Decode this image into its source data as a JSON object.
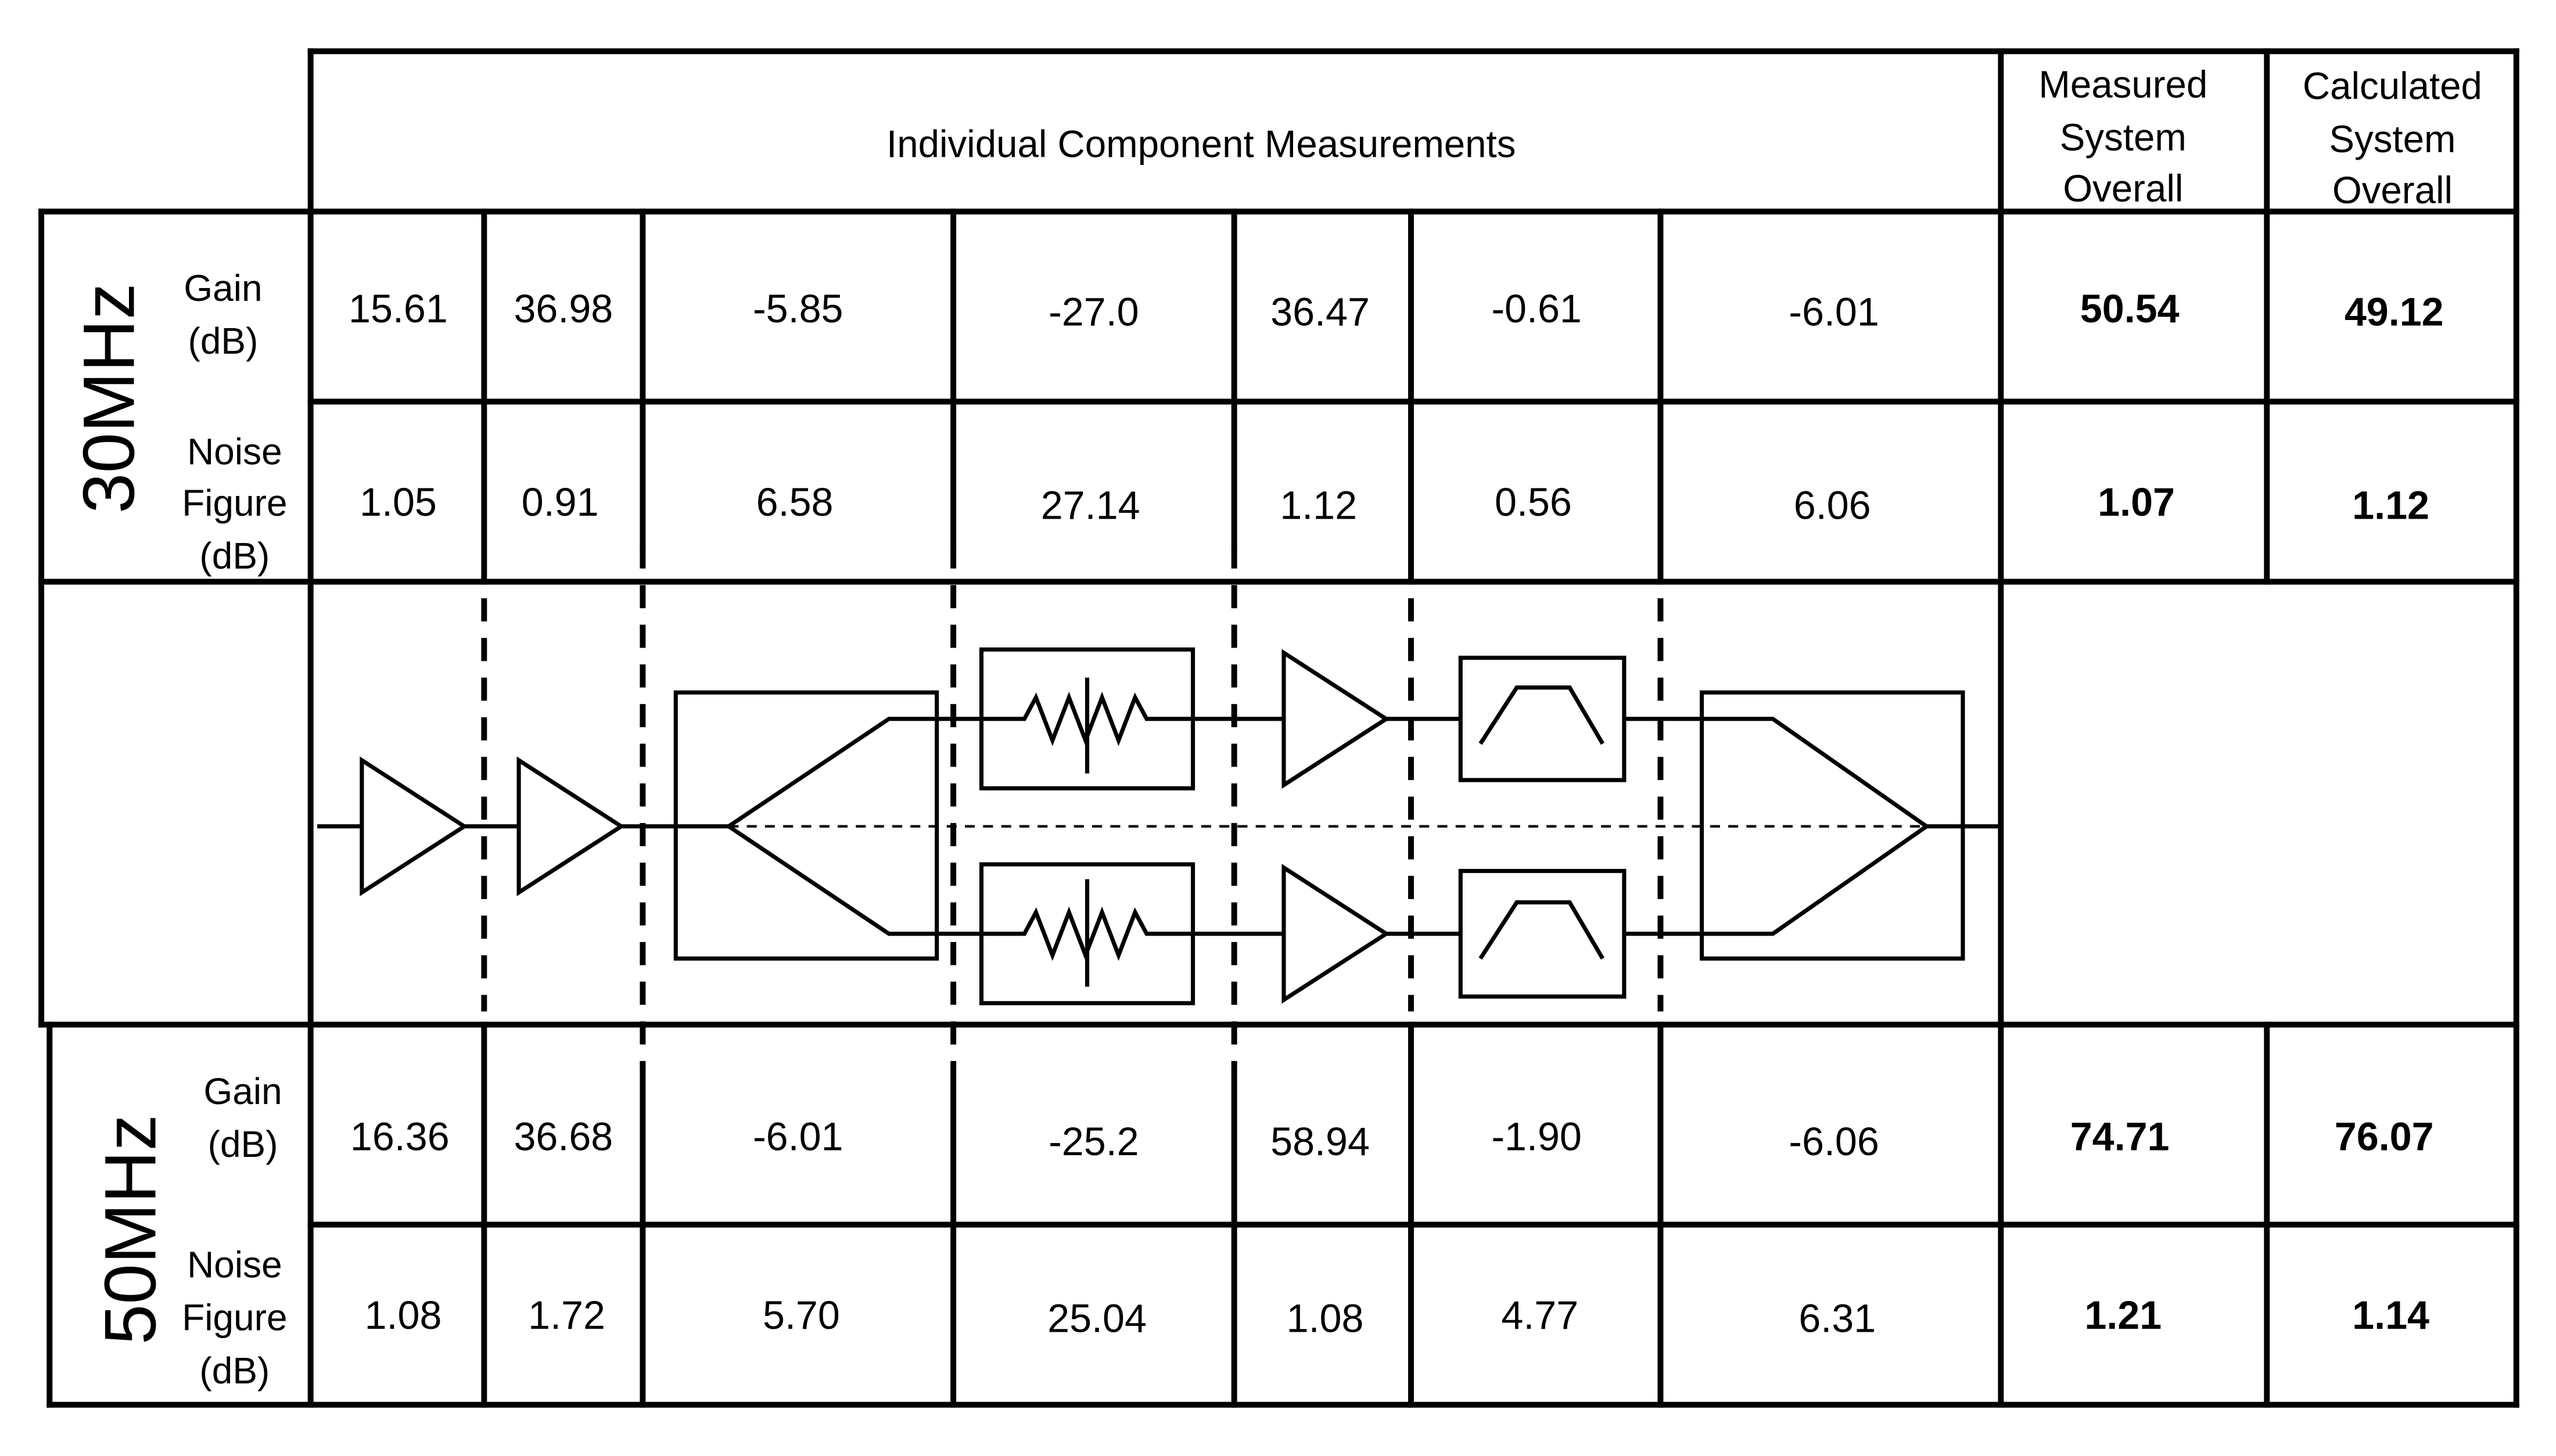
{
  "header": {
    "individual": "Individual Component Measurements",
    "measured": [
      "Measured",
      "System",
      "Overall"
    ],
    "calculated": [
      "Calculated",
      "System",
      "Overall"
    ]
  },
  "sections": [
    {
      "frequency": "30MHz",
      "rows": [
        {
          "label": [
            "Gain",
            "(dB)"
          ],
          "components": [
            "15.61",
            "36.98",
            "-5.85",
            "-27.0",
            "36.47",
            "-0.61",
            "-6.01"
          ],
          "measured": "50.54",
          "calculated": "49.12"
        },
        {
          "label": [
            "Noise",
            "Figure",
            "(dB)"
          ],
          "components": [
            "1.05",
            "0.91",
            "6.58",
            "27.14",
            "1.12",
            "0.56",
            "6.06"
          ],
          "measured": "1.07",
          "calculated": "1.12"
        }
      ]
    },
    {
      "frequency": "50MHz",
      "rows": [
        {
          "label": [
            "Gain",
            "(dB)"
          ],
          "components": [
            "16.36",
            "36.68",
            "-6.01",
            "-25.2",
            "58.94",
            "-1.90",
            "-6.06"
          ],
          "measured": "74.71",
          "calculated": "76.07"
        },
        {
          "label": [
            "Noise",
            "Figure",
            "(dB)"
          ],
          "components": [
            "1.08",
            "1.72",
            "5.70",
            "25.04",
            "1.08",
            "4.77",
            "6.31"
          ],
          "measured": "1.21",
          "calculated": "1.14"
        }
      ]
    }
  ],
  "diagram": {
    "stages": [
      "amplifier",
      "amplifier",
      "power-splitter",
      "variable-attenuator",
      "amplifier",
      "bandpass-filter",
      "power-combiner"
    ]
  }
}
